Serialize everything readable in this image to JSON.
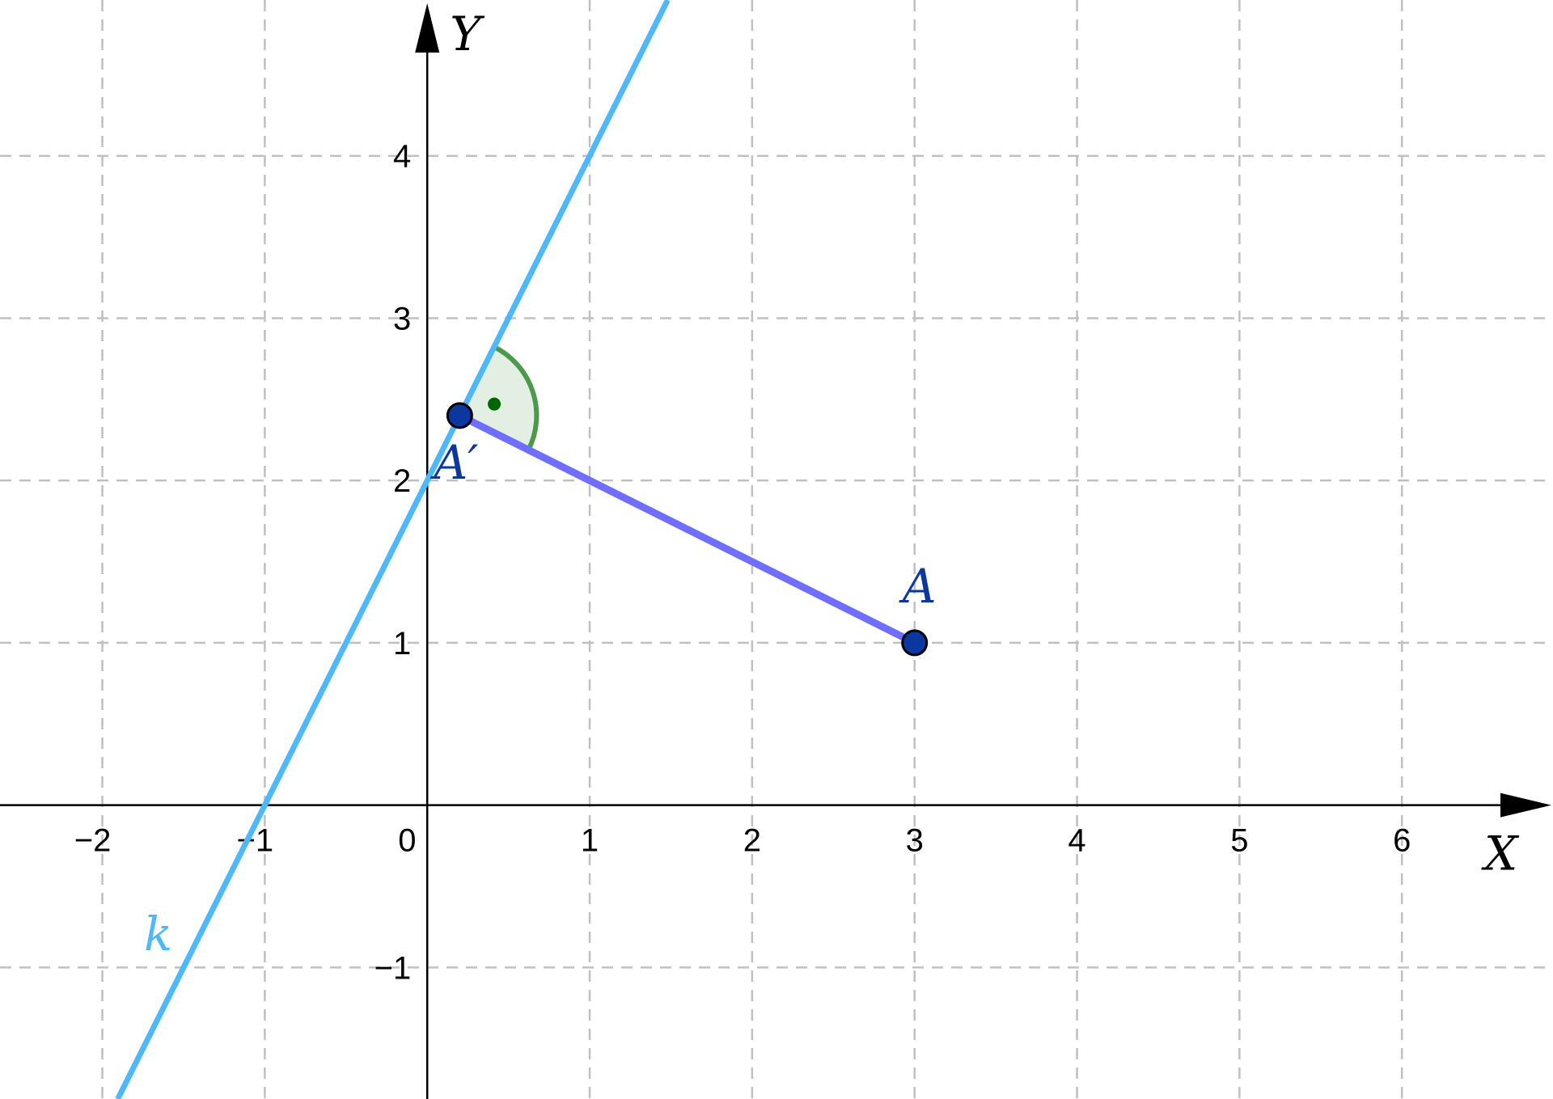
{
  "diagram": {
    "axes": {
      "x_label": "X",
      "y_label": "Y",
      "xlim": [
        -2.63,
        6.93
      ],
      "ylim": [
        -1.81,
        4.96
      ]
    },
    "x_ticks": [
      {
        "v": -2,
        "t": "−2"
      },
      {
        "v": -1,
        "t": "−1"
      },
      {
        "v": 1,
        "t": "1"
      },
      {
        "v": 2,
        "t": "2"
      },
      {
        "v": 3,
        "t": "3"
      },
      {
        "v": 4,
        "t": "4"
      },
      {
        "v": 5,
        "t": "5"
      },
      {
        "v": 6,
        "t": "6"
      }
    ],
    "y_ticks": [
      {
        "v": -1,
        "t": "−1"
      },
      {
        "v": 1,
        "t": "1"
      },
      {
        "v": 2,
        "t": "2"
      },
      {
        "v": 3,
        "t": "3"
      },
      {
        "v": 4,
        "t": "4"
      }
    ],
    "origin_label": "0",
    "line_k": {
      "label": "k",
      "slope": 2,
      "intercept": 2,
      "color": "#4db8fb"
    },
    "points": [
      {
        "id": "A",
        "label": "A",
        "x": 3,
        "y": 1
      },
      {
        "id": "A_prime",
        "label": "A′",
        "x": 0.2,
        "y": 2.4
      }
    ],
    "segment": {
      "from": "A",
      "to": "A_prime",
      "color": "#6e6eff"
    },
    "right_angle_marker": {
      "at": "A_prime",
      "color": "#4a9a4a",
      "fill": "#e4efe4",
      "dot": "#006600"
    },
    "colors": {
      "point_fill": "#0a37a0",
      "grid": "#c0c0c0",
      "label": "#0a37a0"
    }
  }
}
